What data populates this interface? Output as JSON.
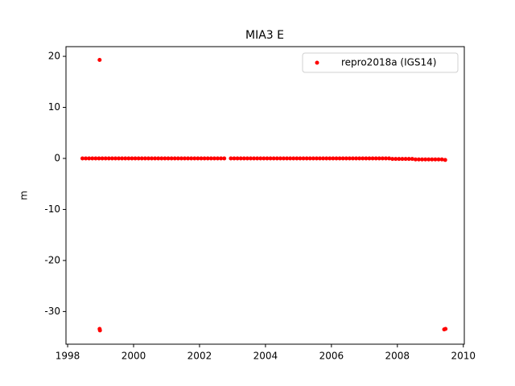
{
  "chart_data": {
    "type": "scatter",
    "title": "MIA3 E",
    "y_label": "m",
    "xlim": [
      1997.95,
      2010.03
    ],
    "xticks": [
      1998,
      2000,
      2002,
      2004,
      2006,
      2008,
      2010
    ],
    "ylim": [
      -36.4,
      21.9
    ],
    "yticks": [
      -30,
      -20,
      -10,
      0,
      10,
      20
    ],
    "legend": "upper right",
    "grid": false,
    "series": [
      {
        "name": "repro2018a (IGS14)",
        "color": "red",
        "x": [
          1998.45,
          1998.55,
          1998.65,
          1998.75,
          1998.85,
          1998.95,
          1999.05,
          1999.15,
          1999.25,
          1999.35,
          1999.45,
          1999.55,
          1999.65,
          1999.75,
          1999.85,
          1999.95,
          2000.05,
          2000.15,
          2000.25,
          2000.35,
          2000.45,
          2000.55,
          2000.65,
          2000.75,
          2000.85,
          2000.95,
          2001.05,
          2001.15,
          2001.25,
          2001.35,
          2001.45,
          2001.55,
          2001.65,
          2001.75,
          2001.85,
          2001.95,
          2002.05,
          2002.15,
          2002.25,
          2002.35,
          2002.45,
          2002.55,
          2002.65,
          2002.75,
          2002.95,
          2003.05,
          2003.15,
          2003.25,
          2003.35,
          2003.45,
          2003.55,
          2003.65,
          2003.75,
          2003.85,
          2003.95,
          2004.05,
          2004.15,
          2004.25,
          2004.35,
          2004.45,
          2004.55,
          2004.65,
          2004.75,
          2004.85,
          2004.95,
          2005.05,
          2005.15,
          2005.25,
          2005.35,
          2005.45,
          2005.55,
          2005.65,
          2005.75,
          2005.85,
          2005.95,
          2006.05,
          2006.15,
          2006.25,
          2006.35,
          2006.45,
          2006.55,
          2006.65,
          2006.75,
          2006.85,
          2006.95,
          2007.05,
          2007.15,
          2007.25,
          2007.35,
          2007.45,
          2007.55,
          2007.65,
          2007.75,
          2007.85,
          2007.95,
          2008.05,
          2008.15,
          2008.25,
          2008.35,
          2008.45,
          2008.55,
          2008.65,
          2008.75,
          2008.85,
          2008.95,
          2009.05,
          2009.15,
          2009.25,
          2009.35,
          2009.45,
          1998.97,
          1998.97,
          1998.98,
          2009.42,
          2009.46
        ],
        "values": [
          0,
          0,
          0,
          0,
          0,
          0,
          0,
          0,
          0,
          0,
          0,
          0,
          0,
          0,
          0,
          0,
          0,
          0,
          0,
          0,
          0,
          0,
          0,
          0,
          0,
          0,
          0,
          0,
          0,
          0,
          0,
          0,
          0,
          0,
          0,
          0,
          0,
          0,
          0,
          0,
          0,
          0,
          0,
          0,
          0,
          0,
          0,
          0,
          0,
          0,
          0,
          0,
          0,
          0,
          0,
          0,
          0,
          0,
          0,
          0,
          0,
          0,
          0,
          0,
          0,
          0,
          0,
          0,
          0,
          0,
          0,
          0,
          0,
          0,
          0,
          0,
          0,
          0,
          0,
          0,
          0,
          0,
          0,
          0,
          0,
          0,
          0,
          0,
          0,
          0,
          0,
          0,
          0,
          -0.1,
          -0.1,
          -0.1,
          -0.1,
          -0.1,
          -0.1,
          -0.1,
          -0.2,
          -0.2,
          -0.2,
          -0.2,
          -0.2,
          -0.2,
          -0.2,
          -0.2,
          -0.2,
          -0.3,
          19.3,
          -33.4,
          -33.7,
          -33.5,
          -33.4
        ]
      }
    ]
  }
}
